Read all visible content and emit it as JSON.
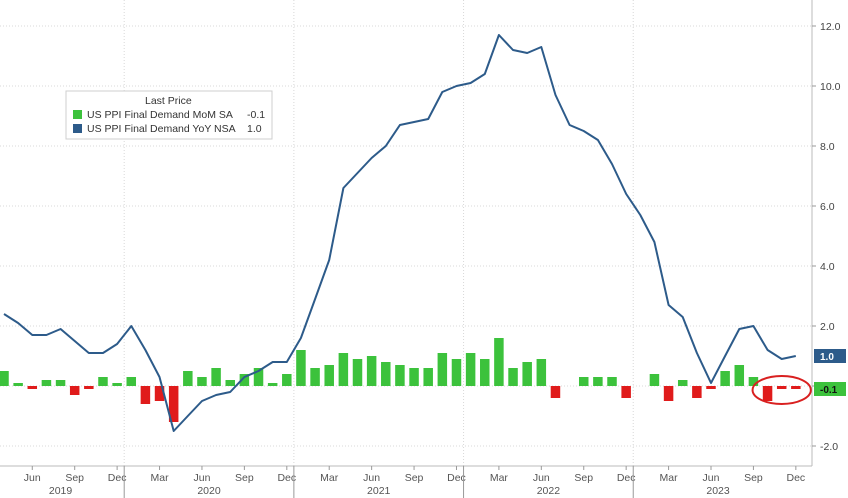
{
  "chart_data": {
    "type": "bar+line",
    "legend": {
      "title": "Last Price",
      "position": "top-left",
      "entries": [
        {
          "label": "US PPI Final Demand MoM SA",
          "last": "-0.1",
          "color": "#3cc23c"
        },
        {
          "label": "US PPI Final Demand YoY NSA",
          "last": "1.0",
          "color": "#2d5b8a"
        }
      ]
    },
    "x": [
      "2019-04",
      "2019-05",
      "2019-06",
      "2019-07",
      "2019-08",
      "2019-09",
      "2019-10",
      "2019-11",
      "2019-12",
      "2020-01",
      "2020-02",
      "2020-03",
      "2020-04",
      "2020-05",
      "2020-06",
      "2020-07",
      "2020-08",
      "2020-09",
      "2020-10",
      "2020-11",
      "2020-12",
      "2021-01",
      "2021-02",
      "2021-03",
      "2021-04",
      "2021-05",
      "2021-06",
      "2021-07",
      "2021-08",
      "2021-09",
      "2021-10",
      "2021-11",
      "2021-12",
      "2022-01",
      "2022-02",
      "2022-03",
      "2022-04",
      "2022-05",
      "2022-06",
      "2022-07",
      "2022-08",
      "2022-09",
      "2022-10",
      "2022-11",
      "2022-12",
      "2023-01",
      "2023-02",
      "2023-03",
      "2023-04",
      "2023-05",
      "2023-06",
      "2023-07",
      "2023-08",
      "2023-09",
      "2023-10",
      "2023-11",
      "2023-12"
    ],
    "series": [
      {
        "name": "US PPI Final Demand MoM SA",
        "type": "bar",
        "values": [
          0.5,
          0.1,
          -0.1,
          0.2,
          0.2,
          -0.3,
          -0.1,
          0.3,
          0.1,
          0.3,
          -0.6,
          -0.5,
          -1.2,
          0.5,
          0.3,
          0.6,
          0.2,
          0.4,
          0.6,
          0.1,
          0.4,
          1.2,
          0.6,
          0.7,
          1.1,
          0.9,
          1.0,
          0.8,
          0.7,
          0.6,
          0.6,
          1.1,
          0.9,
          1.1,
          0.9,
          1.6,
          0.6,
          0.8,
          0.9,
          -0.4,
          0.0,
          0.3,
          0.3,
          0.3,
          -0.4,
          0.0,
          0.4,
          -0.5,
          0.2,
          -0.4,
          -0.1,
          0.5,
          0.7,
          0.3,
          -0.5,
          -0.1,
          -0.1
        ]
      },
      {
        "name": "US PPI Final Demand YoY NSA",
        "type": "line",
        "values": [
          2.4,
          2.1,
          1.7,
          1.7,
          1.9,
          1.5,
          1.1,
          1.1,
          1.4,
          2.0,
          1.2,
          0.3,
          -1.5,
          -1.0,
          -0.5,
          -0.3,
          -0.2,
          0.3,
          0.5,
          0.8,
          0.8,
          1.6,
          2.9,
          4.2,
          6.6,
          7.1,
          7.6,
          8.0,
          8.7,
          8.8,
          8.9,
          9.8,
          10.0,
          10.1,
          10.4,
          11.7,
          11.2,
          11.1,
          11.3,
          9.7,
          8.7,
          8.5,
          8.2,
          7.4,
          6.4,
          5.7,
          4.8,
          2.7,
          2.3,
          1.1,
          0.1,
          1.0,
          1.9,
          2.0,
          1.2,
          0.9,
          1.0
        ]
      }
    ],
    "y_axis": {
      "position": "right",
      "range": [
        -2.6,
        13.0
      ],
      "ticks": [
        "12.0",
        "10.0",
        "8.0",
        "6.0",
        "4.0",
        "2.0",
        "0.0",
        "-2.0"
      ]
    },
    "x_ticks": [
      "Jun",
      "Sep",
      "Dec",
      "Mar",
      "Jun",
      "Sep",
      "Dec",
      "Mar",
      "Jun",
      "Sep",
      "Dec",
      "Mar",
      "Jun",
      "Sep",
      "Dec",
      "Mar",
      "Jun",
      "Sep",
      "Dec"
    ],
    "x_years": [
      "2019",
      "2020",
      "2021",
      "2022",
      "2023"
    ],
    "last_value_tags": [
      {
        "text": "1.0",
        "color": "#2d5b8a"
      },
      {
        "text": "-0.1",
        "color": "#3cc23c"
      }
    ],
    "annotation": {
      "type": "ellipse",
      "color": "#d92020",
      "target_months": [
        "2023-10",
        "2023-12"
      ]
    },
    "grid": "dotted"
  }
}
